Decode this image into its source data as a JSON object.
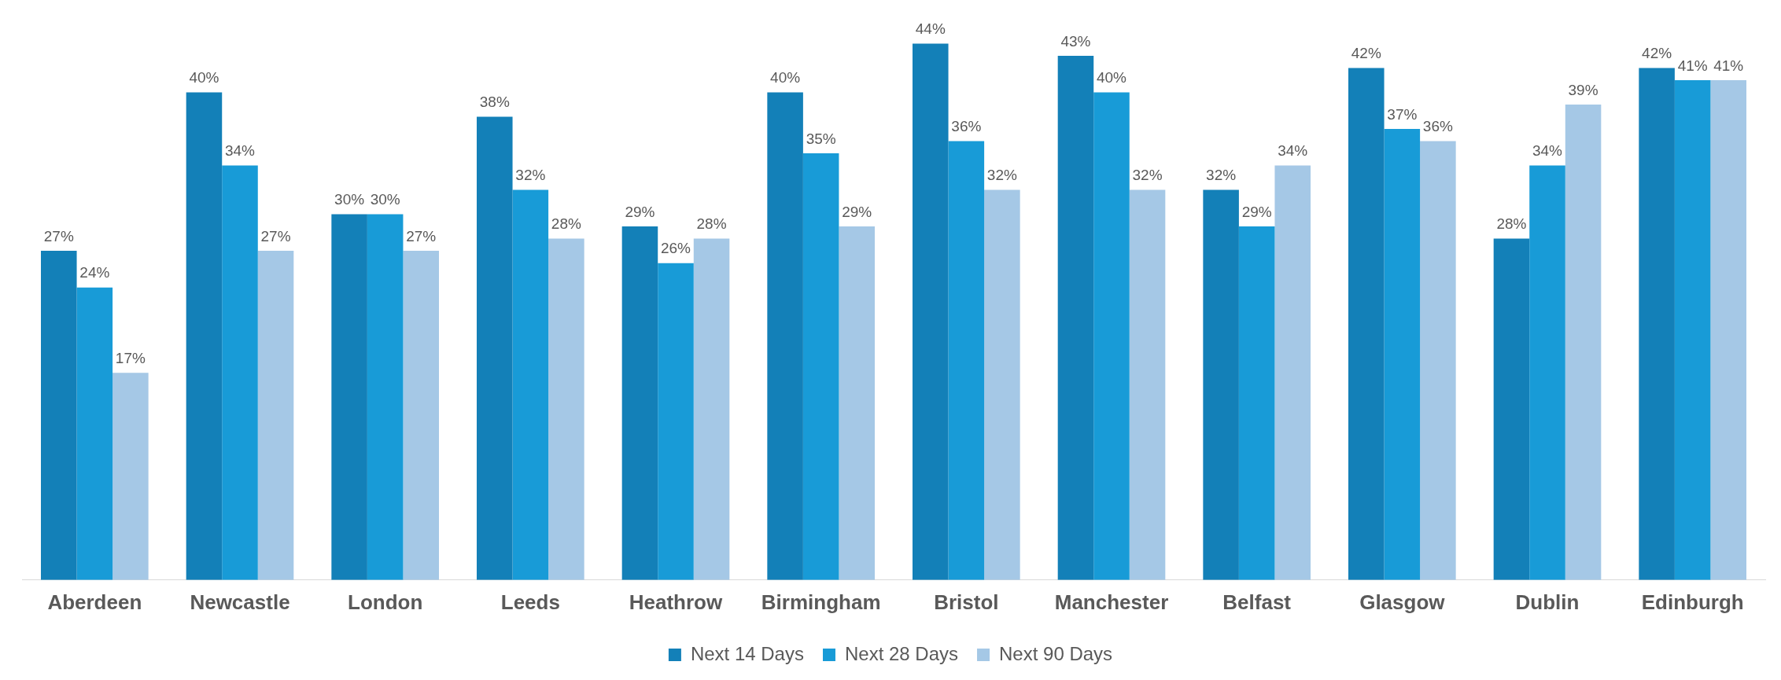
{
  "chart_data": {
    "type": "bar",
    "categories": [
      "Aberdeen",
      "Newcastle",
      "London",
      "Leeds",
      "Heathrow",
      "Birmingham",
      "Bristol",
      "Manchester",
      "Belfast",
      "Glasgow",
      "Dublin",
      "Edinburgh"
    ],
    "series": [
      {
        "name": "Next 14 Days",
        "color": "#1380b8",
        "values": [
          27,
          40,
          30,
          38,
          29,
          40,
          44,
          43,
          32,
          42,
          28,
          42
        ],
        "value_labels": [
          "27%",
          "40%",
          "30%",
          "38%",
          "29%",
          "40%",
          "44%",
          "43%",
          "32%",
          "42%",
          "28%",
          "42%"
        ]
      },
      {
        "name": "Next 28 Days",
        "color": "#189bd7",
        "values": [
          24,
          34,
          30,
          32,
          26,
          35,
          36,
          40,
          29,
          37,
          34,
          41
        ],
        "value_labels": [
          "24%",
          "34%",
          "30%",
          "32%",
          "26%",
          "35%",
          "36%",
          "40%",
          "29%",
          "37%",
          "34%",
          "41%"
        ]
      },
      {
        "name": "Next 90 Days",
        "color": "#a5c8e6",
        "values": [
          17,
          27,
          27,
          28,
          28,
          29,
          32,
          32,
          34,
          36,
          39,
          41
        ],
        "value_labels": [
          "17%",
          "27%",
          "27%",
          "28%",
          "28%",
          "29%",
          "32%",
          "32%",
          "34%",
          "36%",
          "39%",
          "41%"
        ]
      }
    ],
    "grid": false,
    "legend": "bottom",
    "relative": false
  }
}
